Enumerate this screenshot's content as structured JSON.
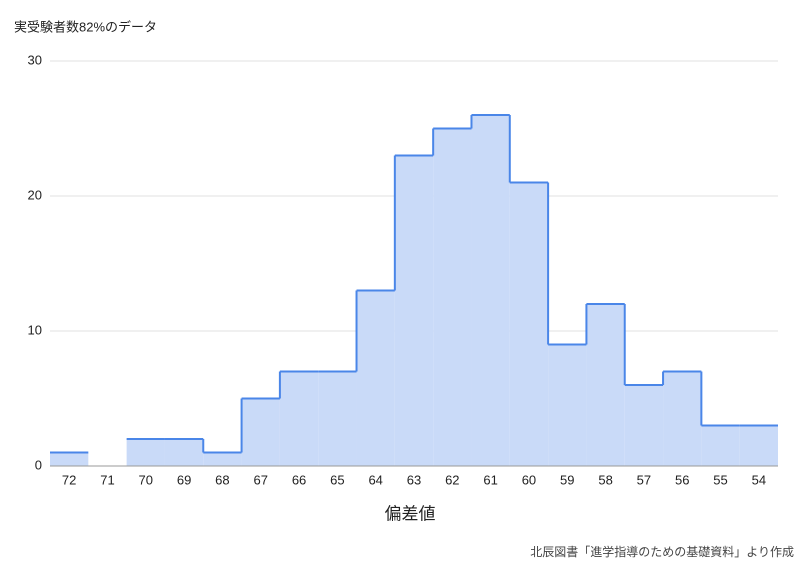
{
  "chart_data": {
    "type": "stepped-area",
    "title": "実受験者数82%のデータ",
    "x_label": "偏差値",
    "source": "北辰図書「進学指導のための基礎資料」より作成",
    "categories": [
      "72",
      "71",
      "70",
      "69",
      "68",
      "67",
      "66",
      "65",
      "64",
      "63",
      "62",
      "61",
      "60",
      "59",
      "58",
      "57",
      "56",
      "55",
      "54"
    ],
    "values": [
      1,
      null,
      2,
      2,
      1,
      5,
      7,
      7,
      13,
      23,
      25,
      26,
      21,
      9,
      12,
      6,
      7,
      3,
      3
    ],
    "color": "#4a86e8",
    "fill": "#c9daf8",
    "ylim": [
      0,
      30
    ],
    "yticks": [
      0,
      10,
      20,
      30
    ],
    "grid": true
  }
}
